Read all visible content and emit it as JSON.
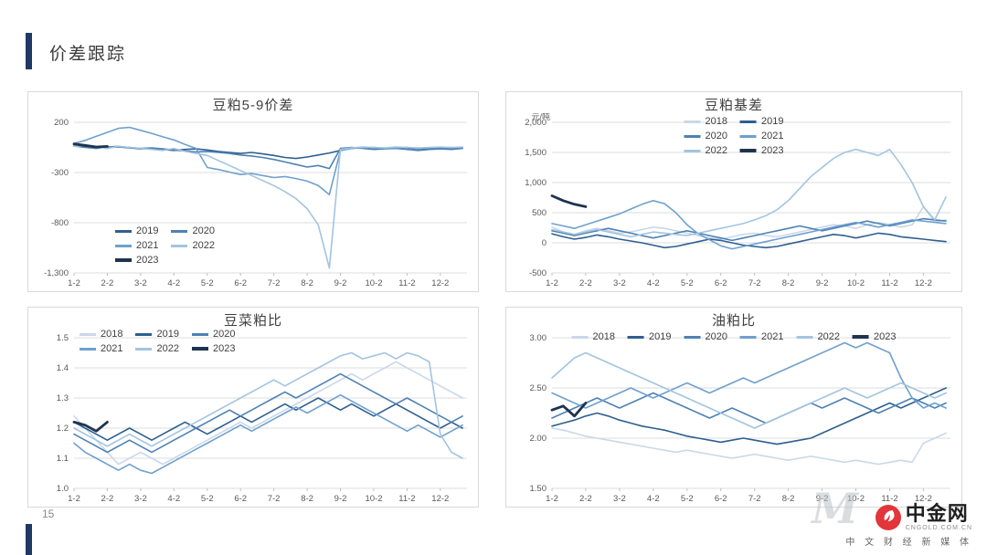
{
  "page": {
    "title": "价差跟踪",
    "page_number": "15"
  },
  "brand": {
    "name": "中金网",
    "domain": "CNGOLD.COM.CN",
    "tagline": "中 文 财 经 新 媒 体",
    "watermark": "M"
  },
  "colors": {
    "accent": "#1F3864",
    "brand_red": "#E2363B",
    "grid": "#DEDEDE",
    "axis_text": "#595959",
    "chart_title": "#404040",
    "panel_border": "#D9D9D9"
  },
  "palette": {
    "2018": "#C9D8EA",
    "2019": "#2E5F8F",
    "2020": "#4E81B4",
    "2021": "#6FA0CE",
    "2022": "#A3C4E0",
    "2023": "#1F3350"
  },
  "chart_data": [
    {
      "type": "line",
      "title": "豆粕5-9价差",
      "ylabel": "",
      "ylim": [
        -1300,
        200
      ],
      "ytick_values": [
        200,
        -300,
        -800,
        -1300
      ],
      "ytick_labels": [
        "200",
        "-300",
        "-800",
        "-1,300"
      ],
      "xticks": [
        "1-2",
        "2-2",
        "3-2",
        "4-2",
        "5-2",
        "6-2",
        "7-2",
        "8-2",
        "9-2",
        "10-2",
        "11-2",
        "12-2"
      ],
      "legend": {
        "position": "bottom-left",
        "columns": 2
      },
      "series": [
        {
          "name": "2019",
          "values": [
            -20,
            -40,
            -55,
            -50,
            -45,
            -55,
            -65,
            -60,
            -70,
            -80,
            -70,
            -65,
            -75,
            -90,
            -100,
            -110,
            -100,
            -115,
            -130,
            -150,
            -160,
            -145,
            -125,
            -105,
            -80,
            -60,
            -50,
            -55,
            -60,
            -50,
            -55,
            -65,
            -60,
            -55,
            -60,
            -55
          ]
        },
        {
          "name": "2020",
          "values": [
            -35,
            -50,
            -60,
            -45,
            -40,
            -50,
            -60,
            -55,
            -65,
            -75,
            -85,
            -95,
            -90,
            -100,
            -110,
            -125,
            -135,
            -150,
            -170,
            -195,
            -220,
            -245,
            -230,
            -260,
            -60,
            -50,
            -60,
            -70,
            -65,
            -60,
            -70,
            -80,
            -70,
            -65,
            -70,
            -60
          ]
        },
        {
          "name": "2021",
          "values": [
            -10,
            20,
            60,
            100,
            140,
            150,
            120,
            90,
            55,
            25,
            -20,
            -60,
            -250,
            -270,
            -295,
            -320,
            -310,
            -330,
            -350,
            -340,
            -360,
            -385,
            -430,
            -520,
            -80,
            -60,
            -55,
            -50,
            -60,
            -55,
            -50,
            -60,
            -55,
            -50,
            -55,
            -50
          ]
        },
        {
          "name": "2022",
          "values": [
            -40,
            -30,
            -45,
            -60,
            -40,
            -50,
            -60,
            -70,
            -80,
            -60,
            -90,
            -110,
            -130,
            -180,
            -230,
            -280,
            -330,
            -380,
            -430,
            -490,
            -560,
            -660,
            -820,
            -1250,
            -70,
            -55,
            -45,
            -50,
            -55,
            -45,
            -50,
            -55,
            -50,
            -45,
            -50,
            -45
          ]
        },
        {
          "name": "2023",
          "values": [
            -15,
            -30,
            -45,
            -40
          ]
        }
      ]
    },
    {
      "type": "line",
      "title": "豆粕基差",
      "ylabel": "元/吨",
      "ylim": [
        -500,
        2000
      ],
      "ytick_values": [
        2000,
        1500,
        1000,
        500,
        0,
        -500
      ],
      "ytick_labels": [
        "2,000",
        "1,500",
        "1,000",
        "500",
        "0",
        "-500"
      ],
      "xticks": [
        "1-2",
        "2-2",
        "3-2",
        "4-2",
        "5-2",
        "6-2",
        "7-2",
        "8-2",
        "9-2",
        "10-2",
        "11-2",
        "12-2"
      ],
      "legend": {
        "position": "top-center",
        "columns": 2
      },
      "series": [
        {
          "name": "2018",
          "values": [
            260,
            180,
            140,
            200,
            240,
            200,
            160,
            180,
            220,
            260,
            240,
            200,
            160,
            120,
            80,
            60,
            100,
            140,
            160,
            120,
            100,
            140,
            180,
            220,
            260,
            300,
            280,
            240,
            300,
            340,
            300,
            260,
            300,
            600,
            350,
            380
          ]
        },
        {
          "name": "2019",
          "values": [
            150,
            100,
            60,
            90,
            130,
            100,
            60,
            30,
            0,
            -40,
            -80,
            -60,
            -20,
            20,
            60,
            40,
            0,
            -40,
            -60,
            -80,
            -60,
            -20,
            20,
            60,
            100,
            140,
            120,
            80,
            120,
            160,
            140,
            100,
            80,
            60,
            40,
            20
          ]
        },
        {
          "name": "2020",
          "values": [
            200,
            160,
            120,
            160,
            200,
            240,
            200,
            160,
            120,
            80,
            120,
            160,
            200,
            160,
            120,
            80,
            40,
            80,
            120,
            160,
            200,
            240,
            280,
            240,
            200,
            240,
            280,
            320,
            360,
            320,
            280,
            320,
            360,
            400,
            380,
            360
          ]
        },
        {
          "name": "2021",
          "values": [
            320,
            280,
            240,
            300,
            360,
            420,
            480,
            560,
            640,
            700,
            650,
            500,
            300,
            150,
            50,
            -50,
            -100,
            -60,
            -20,
            20,
            60,
            100,
            140,
            180,
            220,
            260,
            300,
            340,
            300,
            260,
            300,
            340,
            380,
            360,
            340,
            320
          ]
        },
        {
          "name": "2022",
          "values": [
            220,
            180,
            140,
            180,
            220,
            180,
            140,
            100,
            140,
            180,
            160,
            140,
            120,
            160,
            200,
            240,
            280,
            320,
            380,
            450,
            550,
            700,
            900,
            1100,
            1250,
            1400,
            1500,
            1550,
            1500,
            1450,
            1550,
            1300,
            1000,
            600,
            380,
            760
          ]
        },
        {
          "name": "2023",
          "values": [
            780,
            700,
            640,
            600
          ]
        }
      ]
    },
    {
      "type": "line",
      "title": "豆菜粕比",
      "ylabel": "",
      "ylim": [
        1.0,
        1.5
      ],
      "ytick_values": [
        1.5,
        1.4,
        1.3,
        1.2,
        1.1,
        1.0
      ],
      "ytick_labels": [
        "1.5",
        "1.4",
        "1.3",
        "1.2",
        "1.1",
        "1.0"
      ],
      "xticks": [
        "1-2",
        "2-2",
        "3-2",
        "4-2",
        "5-2",
        "6-2",
        "7-2",
        "8-2",
        "9-2",
        "10-2",
        "11-2",
        "12-2"
      ],
      "legend": {
        "position": "top-left",
        "columns": 3
      },
      "series": [
        {
          "name": "2018",
          "values": [
            1.24,
            1.2,
            1.16,
            1.12,
            1.08,
            1.1,
            1.12,
            1.1,
            1.08,
            1.1,
            1.12,
            1.14,
            1.16,
            1.18,
            1.2,
            1.22,
            1.2,
            1.22,
            1.24,
            1.26,
            1.28,
            1.3,
            1.32,
            1.34,
            1.36,
            1.38,
            1.36,
            1.38,
            1.4,
            1.42,
            1.4,
            1.38,
            1.36,
            1.34,
            1.32,
            1.3
          ]
        },
        {
          "name": "2019",
          "values": [
            1.22,
            1.2,
            1.18,
            1.16,
            1.18,
            1.2,
            1.18,
            1.16,
            1.18,
            1.2,
            1.22,
            1.2,
            1.18,
            1.2,
            1.22,
            1.24,
            1.22,
            1.24,
            1.26,
            1.28,
            1.26,
            1.28,
            1.3,
            1.28,
            1.26,
            1.28,
            1.26,
            1.24,
            1.26,
            1.28,
            1.26,
            1.24,
            1.22,
            1.2,
            1.22,
            1.2
          ]
        },
        {
          "name": "2020",
          "values": [
            1.18,
            1.16,
            1.14,
            1.12,
            1.14,
            1.16,
            1.14,
            1.12,
            1.14,
            1.16,
            1.18,
            1.2,
            1.22,
            1.24,
            1.26,
            1.24,
            1.26,
            1.28,
            1.3,
            1.32,
            1.3,
            1.32,
            1.34,
            1.36,
            1.38,
            1.36,
            1.34,
            1.32,
            1.3,
            1.28,
            1.3,
            1.28,
            1.26,
            1.24,
            1.22,
            1.24
          ]
        },
        {
          "name": "2021",
          "values": [
            1.15,
            1.12,
            1.1,
            1.08,
            1.06,
            1.08,
            1.06,
            1.05,
            1.07,
            1.09,
            1.11,
            1.13,
            1.15,
            1.17,
            1.19,
            1.21,
            1.19,
            1.21,
            1.23,
            1.25,
            1.27,
            1.25,
            1.27,
            1.29,
            1.31,
            1.29,
            1.27,
            1.25,
            1.23,
            1.21,
            1.19,
            1.21,
            1.19,
            1.17,
            1.19,
            1.21
          ]
        },
        {
          "name": "2022",
          "values": [
            1.2,
            1.18,
            1.16,
            1.14,
            1.16,
            1.18,
            1.16,
            1.14,
            1.16,
            1.18,
            1.2,
            1.22,
            1.24,
            1.26,
            1.28,
            1.3,
            1.32,
            1.34,
            1.36,
            1.34,
            1.36,
            1.38,
            1.4,
            1.42,
            1.44,
            1.45,
            1.43,
            1.44,
            1.45,
            1.43,
            1.45,
            1.44,
            1.42,
            1.18,
            1.12,
            1.1
          ]
        },
        {
          "name": "2023",
          "values": [
            1.22,
            1.21,
            1.19,
            1.22
          ]
        }
      ]
    },
    {
      "type": "line",
      "title": "油粕比",
      "ylabel": "",
      "ylim": [
        1.5,
        3.0
      ],
      "ytick_values": [
        3.0,
        2.5,
        2.0,
        1.5
      ],
      "ytick_labels": [
        "3.00",
        "2.50",
        "2.00",
        "1.50"
      ],
      "xticks": [
        "1-2",
        "2-2",
        "3-2",
        "4-2",
        "5-2",
        "6-2",
        "7-2",
        "8-2",
        "9-2",
        "10-2",
        "11-2",
        "12-2"
      ],
      "legend": {
        "position": "top-center",
        "columns": 6
      },
      "series": [
        {
          "name": "2018",
          "values": [
            2.1,
            2.08,
            2.05,
            2.02,
            2.0,
            1.98,
            1.96,
            1.94,
            1.92,
            1.9,
            1.88,
            1.86,
            1.88,
            1.86,
            1.84,
            1.82,
            1.8,
            1.82,
            1.84,
            1.82,
            1.8,
            1.78,
            1.8,
            1.82,
            1.8,
            1.78,
            1.76,
            1.78,
            1.76,
            1.74,
            1.76,
            1.78,
            1.76,
            1.95,
            2.0,
            2.05
          ]
        },
        {
          "name": "2019",
          "values": [
            2.12,
            2.15,
            2.18,
            2.22,
            2.25,
            2.22,
            2.18,
            2.15,
            2.12,
            2.1,
            2.08,
            2.05,
            2.02,
            2.0,
            1.98,
            1.96,
            1.98,
            2.0,
            1.98,
            1.96,
            1.94,
            1.96,
            1.98,
            2.0,
            2.05,
            2.1,
            2.15,
            2.2,
            2.25,
            2.3,
            2.35,
            2.3,
            2.35,
            2.4,
            2.45,
            2.5
          ]
        },
        {
          "name": "2020",
          "values": [
            2.2,
            2.25,
            2.3,
            2.35,
            2.4,
            2.35,
            2.3,
            2.35,
            2.4,
            2.45,
            2.4,
            2.35,
            2.3,
            2.25,
            2.2,
            2.25,
            2.3,
            2.25,
            2.2,
            2.15,
            2.2,
            2.25,
            2.3,
            2.35,
            2.3,
            2.35,
            2.4,
            2.35,
            2.3,
            2.25,
            2.3,
            2.35,
            2.4,
            2.35,
            2.3,
            2.35
          ]
        },
        {
          "name": "2021",
          "values": [
            2.45,
            2.4,
            2.35,
            2.3,
            2.35,
            2.4,
            2.45,
            2.5,
            2.45,
            2.4,
            2.45,
            2.5,
            2.55,
            2.5,
            2.45,
            2.5,
            2.55,
            2.6,
            2.55,
            2.6,
            2.65,
            2.7,
            2.75,
            2.8,
            2.85,
            2.9,
            2.95,
            2.9,
            2.95,
            2.9,
            2.85,
            2.6,
            2.4,
            2.3,
            2.35,
            2.3
          ]
        },
        {
          "name": "2022",
          "values": [
            2.6,
            2.7,
            2.8,
            2.85,
            2.8,
            2.75,
            2.7,
            2.65,
            2.6,
            2.55,
            2.5,
            2.45,
            2.4,
            2.35,
            2.3,
            2.25,
            2.2,
            2.15,
            2.1,
            2.15,
            2.2,
            2.25,
            2.3,
            2.35,
            2.4,
            2.45,
            2.5,
            2.45,
            2.4,
            2.45,
            2.5,
            2.55,
            2.5,
            2.45,
            2.4,
            2.45
          ]
        },
        {
          "name": "2023",
          "values": [
            2.28,
            2.32,
            2.22,
            2.35
          ]
        }
      ]
    }
  ]
}
